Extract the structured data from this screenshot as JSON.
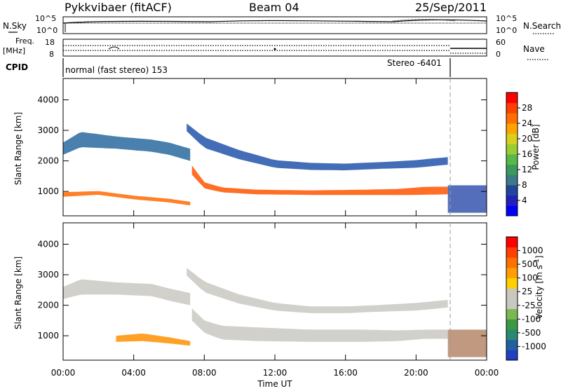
{
  "header": {
    "radar": "Pykkvibaer (fitACF)",
    "beam": "Beam 04",
    "date": "25/Sep/2011"
  },
  "top_panels": {
    "nsky": {
      "label": "N.Sky",
      "ticks": [
        "10^5",
        "10^0"
      ],
      "right_label": "N.Search",
      "right_ticks": [
        "10^5",
        "10^0"
      ]
    },
    "freq": {
      "label_line1": "Freq.",
      "label_line2": "[MHz]",
      "ticks": [
        "18",
        "8"
      ],
      "right_label": "Nave",
      "right_ticks": [
        "60",
        "0"
      ]
    },
    "cpid": {
      "label": "CPID",
      "mode1": "normal (fast stereo) 153",
      "mode2": "Stereo -6401"
    }
  },
  "chart_data": [
    {
      "type": "heatmap",
      "title": "",
      "xlabel": "Time UT",
      "ylabel": "Slant Range [km]",
      "x_ticks": [
        "00:00",
        "04:00",
        "08:00",
        "12:00",
        "16:00",
        "20:00",
        "00:00"
      ],
      "y_ticks": [
        "1000",
        "2000",
        "3000",
        "4000"
      ],
      "ylim": [
        200,
        4700
      ],
      "xlim_hours": [
        0,
        24
      ],
      "colorbar": {
        "label": "Power [dB]",
        "ticks": [
          "4",
          "8",
          "12",
          "16",
          "20",
          "24",
          "28"
        ],
        "colors": [
          "#0000ff",
          "#2222bb",
          "#224499",
          "#3a7a8a",
          "#3a9a5a",
          "#58b848",
          "#9acd32",
          "#d8d020",
          "#ffa500",
          "#ff7000",
          "#ff4000",
          "#ff0000"
        ]
      },
      "bands": [
        {
          "name": "main-echo",
          "t": [
            7.3,
            8.0,
            9.0,
            11.0,
            14.0,
            17.0,
            19.0,
            20.5,
            21.8
          ],
          "r": [
            1700,
            1200,
            1050,
            980,
            960,
            970,
            980,
            1020,
            1030
          ],
          "w": [
            300,
            200,
            160,
            150,
            150,
            170,
            200,
            260,
            250
          ],
          "c": "#ff5500"
        },
        {
          "name": "upper-band",
          "t": [
            7.0,
            8.0,
            10.0,
            12.0,
            14.0,
            16.0,
            18.0,
            20.0,
            21.8
          ],
          "r": [
            3100,
            2600,
            2200,
            1900,
            1820,
            1800,
            1850,
            1900,
            2000
          ],
          "w": [
            250,
            350,
            300,
            250,
            230,
            220,
            220,
            250,
            250
          ],
          "c": "#2255aa"
        },
        {
          "name": "early-band",
          "t": [
            0.0,
            1.0,
            3.0,
            5.0,
            6.0,
            7.2
          ],
          "r": [
            2400,
            2700,
            2600,
            2500,
            2400,
            2200
          ],
          "w": [
            400,
            500,
            400,
            400,
            400,
            400
          ],
          "c": "#2a6aa0"
        },
        {
          "name": "early-low",
          "t": [
            0.0,
            2.0,
            4.0,
            6.0,
            7.2
          ],
          "r": [
            900,
            950,
            800,
            700,
            600
          ],
          "w": [
            150,
            120,
            120,
            120,
            120
          ],
          "c": "#ff6a00"
        }
      ],
      "stereo_block": {
        "t": [
          21.8,
          24.0
        ],
        "r": [
          300,
          1200
        ],
        "c": "#2a4aaa"
      }
    },
    {
      "type": "heatmap",
      "title": "",
      "xlabel": "Time UT",
      "ylabel": "Slant Range [km]",
      "x_ticks": [
        "00:00",
        "04:00",
        "08:00",
        "12:00",
        "16:00",
        "20:00",
        "00:00"
      ],
      "y_ticks": [
        "1000",
        "2000",
        "3000",
        "4000"
      ],
      "ylim": [
        200,
        4700
      ],
      "xlim_hours": [
        0,
        24
      ],
      "colorbar": {
        "label": "Velocity [m s^-1]",
        "ticks": [
          "1000",
          "500",
          "100",
          "25",
          "-25",
          "-100",
          "-500",
          "-1000"
        ],
        "colors": [
          "#2040c0",
          "#2060a0",
          "#2a8a70",
          "#3a9a40",
          "#7ab850",
          "#c8c8c0",
          "#c8c8c0",
          "#ffd000",
          "#ffa000",
          "#ff7000",
          "#ff4000",
          "#ff0000"
        ]
      },
      "bands": [
        {
          "name": "ground-scatter",
          "t": [
            7.3,
            8.0,
            9.0,
            11.0,
            14.0,
            17.0,
            19.0,
            20.5,
            21.8
          ],
          "r": [
            1700,
            1300,
            1100,
            1050,
            1000,
            1000,
            1000,
            1050,
            1050
          ],
          "w": [
            400,
            400,
            450,
            450,
            400,
            400,
            350,
            300,
            300
          ],
          "c": "#c9c8c2"
        },
        {
          "name": "upper-grey",
          "t": [
            7.0,
            8.0,
            10.0,
            12.0,
            14.0,
            16.0,
            18.0,
            20.0,
            21.8
          ],
          "r": [
            3100,
            2600,
            2200,
            1950,
            1850,
            1850,
            1900,
            1950,
            2050
          ],
          "w": [
            250,
            350,
            300,
            250,
            220,
            220,
            220,
            250,
            250
          ],
          "c": "#c9c8c2"
        },
        {
          "name": "early-grey",
          "t": [
            0.0,
            1.0,
            3.0,
            5.0,
            6.0,
            7.2
          ],
          "r": [
            2400,
            2600,
            2550,
            2500,
            2350,
            2200
          ],
          "w": [
            400,
            500,
            400,
            400,
            400,
            400
          ],
          "c": "#c9c8c2"
        },
        {
          "name": "orange-flow",
          "t": [
            3.0,
            4.5,
            6.0,
            7.2
          ],
          "r": [
            900,
            950,
            850,
            750
          ],
          "w": [
            200,
            250,
            200,
            150
          ],
          "c": "#ff9000"
        }
      ],
      "stereo_block": {
        "t": [
          21.8,
          24.0
        ],
        "r": [
          300,
          1200
        ],
        "c": "#b08060"
      }
    }
  ]
}
